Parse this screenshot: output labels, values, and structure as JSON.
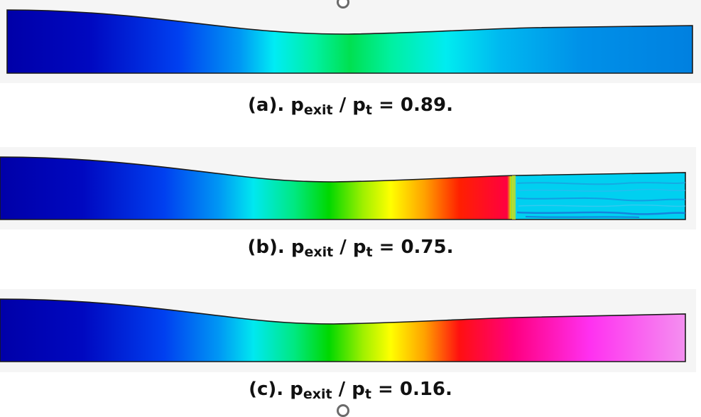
{
  "colors": {
    "panel_background": "#f5f5f5",
    "outline": "#1a1a1a",
    "colormap": [
      "#0000b4",
      "#0a3cf0",
      "#00f0f0",
      "#00e600",
      "#ffff00",
      "#ff8000",
      "#ff0000",
      "#ff00ff",
      "#f48cf4"
    ]
  },
  "cases": [
    {
      "id": "a",
      "label": "(a).",
      "symbol": "p",
      "sub1": "exit",
      "slash": "/",
      "sub2": "t",
      "equals": "=",
      "ratio": "0.89."
    },
    {
      "id": "b",
      "label": "(b).",
      "symbol": "p",
      "sub1": "exit",
      "slash": "/",
      "sub2": "t",
      "equals": "=",
      "ratio": "0.75."
    },
    {
      "id": "c",
      "label": "(c).",
      "symbol": "p",
      "sub1": "exit",
      "slash": "/",
      "sub2": "t",
      "equals": "=",
      "ratio": "0.16."
    }
  ]
}
